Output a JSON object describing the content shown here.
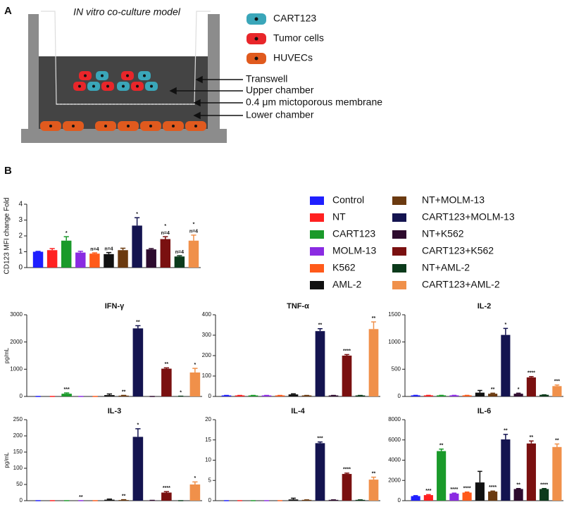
{
  "panel_a": {
    "label": "A",
    "title": "IN vitro co-culture model",
    "cells": [
      {
        "name": "CART123",
        "color": "#3aa6b9"
      },
      {
        "name": "Tumor cells",
        "color": "#e8262a"
      },
      {
        "name": "HUVECs",
        "color": "#e05a1e"
      }
    ],
    "callouts": [
      "Transwell",
      "Upper chamber",
      "0.4 μm mictoporous membrane",
      "Lower chamber"
    ]
  },
  "panel_b_label": "B",
  "chart_data": [
    {
      "type": "bar",
      "ylabel": "CD123 MFI change Fold",
      "categories": [
        "Control",
        "NT",
        "CART123",
        "MOLM-13",
        "K562",
        "AML-2",
        "NT+MOLM-13",
        "CART123+MOLM-13",
        "NT+K562",
        "CART123+K562",
        "NT+AML-2",
        "CART123+AML-2"
      ],
      "colors": [
        "#1f1fff",
        "#ff2020",
        "#1a9a2a",
        "#8a2be2",
        "#ff5a1a",
        "#111111",
        "#6b3a10",
        "#141450",
        "#2e0b2e",
        "#7a1010",
        "#0b3a1b",
        "#f0904a"
      ],
      "ylim": [
        0,
        4
      ],
      "yticks": [
        0,
        1,
        2,
        3,
        4
      ],
      "values": [
        1.0,
        1.1,
        1.7,
        0.95,
        0.88,
        0.85,
        1.1,
        2.65,
        1.15,
        1.8,
        0.7,
        1.7
      ],
      "errors": [
        0.02,
        0.1,
        0.25,
        0.08,
        0.05,
        0.1,
        0.12,
        0.5,
        0.05,
        0.15,
        0.05,
        0.35
      ],
      "annotations": [
        null,
        null,
        [
          "*"
        ],
        null,
        [
          "n=4"
        ],
        [
          "n=4"
        ],
        null,
        [
          "*"
        ],
        null,
        [
          "*",
          "n=4"
        ],
        [
          "n=4"
        ],
        [
          "*",
          "n=4"
        ]
      ]
    },
    {
      "type": "bar",
      "title": "IFN-γ",
      "ylabel": "pg/mL",
      "ylim": [
        0,
        3000
      ],
      "yticks": [
        0,
        1000,
        2000,
        3000
      ],
      "values": [
        0,
        0,
        100,
        0,
        0,
        50,
        30,
        2500,
        0,
        1020,
        10,
        880
      ],
      "errors": [
        0,
        0,
        30,
        0,
        0,
        40,
        10,
        100,
        0,
        30,
        0,
        150
      ],
      "annotations": [
        null,
        null,
        [
          "***"
        ],
        null,
        null,
        null,
        [
          "**"
        ],
        [
          "**"
        ],
        null,
        [
          "**"
        ],
        [
          "*"
        ],
        [
          "*"
        ]
      ]
    },
    {
      "type": "bar",
      "title": "TNF-α",
      "ylim": [
        0,
        400
      ],
      "yticks": [
        0,
        100,
        200,
        300,
        400
      ],
      "values": [
        5,
        5,
        5,
        5,
        5,
        10,
        5,
        320,
        5,
        200,
        5,
        330
      ],
      "errors": [
        0,
        0,
        0,
        0,
        0,
        3,
        0,
        12,
        0,
        5,
        0,
        35
      ],
      "annotations": [
        null,
        null,
        null,
        null,
        null,
        null,
        null,
        [
          "**"
        ],
        null,
        [
          "****"
        ],
        null,
        [
          "**"
        ]
      ]
    },
    {
      "type": "bar",
      "title": "IL-2",
      "ylim": [
        0,
        1500
      ],
      "yticks": [
        0,
        500,
        1000,
        1500
      ],
      "values": [
        20,
        20,
        20,
        20,
        20,
        70,
        50,
        1130,
        50,
        350,
        30,
        190
      ],
      "errors": [
        0,
        0,
        0,
        0,
        0,
        40,
        10,
        120,
        10,
        15,
        0,
        20
      ],
      "annotations": [
        null,
        null,
        null,
        null,
        null,
        null,
        [
          "**"
        ],
        [
          "*"
        ],
        [
          "*"
        ],
        [
          "****"
        ],
        null,
        [
          "***"
        ]
      ]
    },
    {
      "type": "bar",
      "title": "IL-3",
      "ylabel": "pg/mL",
      "ylim": [
        0,
        250
      ],
      "yticks": [
        0,
        50,
        100,
        150,
        200,
        250
      ],
      "values": [
        0,
        0,
        0,
        0,
        0,
        3,
        2,
        197,
        1,
        25,
        0,
        50
      ],
      "errors": [
        0,
        0,
        0,
        0,
        0,
        2,
        1,
        25,
        0,
        3,
        0,
        8
      ],
      "annotations": [
        null,
        null,
        null,
        [
          "**"
        ],
        null,
        null,
        [
          "**"
        ],
        [
          "*"
        ],
        null,
        [
          "****"
        ],
        null,
        [
          "*"
        ]
      ]
    },
    {
      "type": "bar",
      "title": "IL-4",
      "ylim": [
        0,
        20
      ],
      "yticks": [
        0,
        5,
        10,
        15,
        20
      ],
      "values": [
        0,
        0,
        0,
        0,
        0,
        0.3,
        0.2,
        14.2,
        0.2,
        6.6,
        0.2,
        5.2
      ],
      "errors": [
        0,
        0,
        0,
        0,
        0,
        0.3,
        0,
        0.3,
        0,
        0.2,
        0,
        0.6
      ],
      "annotations": [
        null,
        null,
        null,
        null,
        null,
        null,
        null,
        [
          "***"
        ],
        null,
        [
          "****"
        ],
        null,
        [
          "**"
        ]
      ]
    },
    {
      "type": "bar",
      "title": "IL-6",
      "ylim": [
        0,
        8000
      ],
      "yticks": [
        0,
        2000,
        4000,
        6000,
        8000
      ],
      "values": [
        450,
        550,
        4900,
        700,
        800,
        1800,
        900,
        6050,
        1150,
        5650,
        1150,
        5300
      ],
      "errors": [
        50,
        50,
        200,
        50,
        50,
        1100,
        50,
        500,
        50,
        250,
        50,
        300
      ],
      "annotations": [
        null,
        [
          "***"
        ],
        [
          "**"
        ],
        [
          "****"
        ],
        [
          "****"
        ],
        null,
        [
          "****"
        ],
        [
          "**"
        ],
        [
          "**"
        ],
        [
          "**"
        ],
        [
          "****"
        ],
        [
          "**"
        ]
      ]
    }
  ]
}
